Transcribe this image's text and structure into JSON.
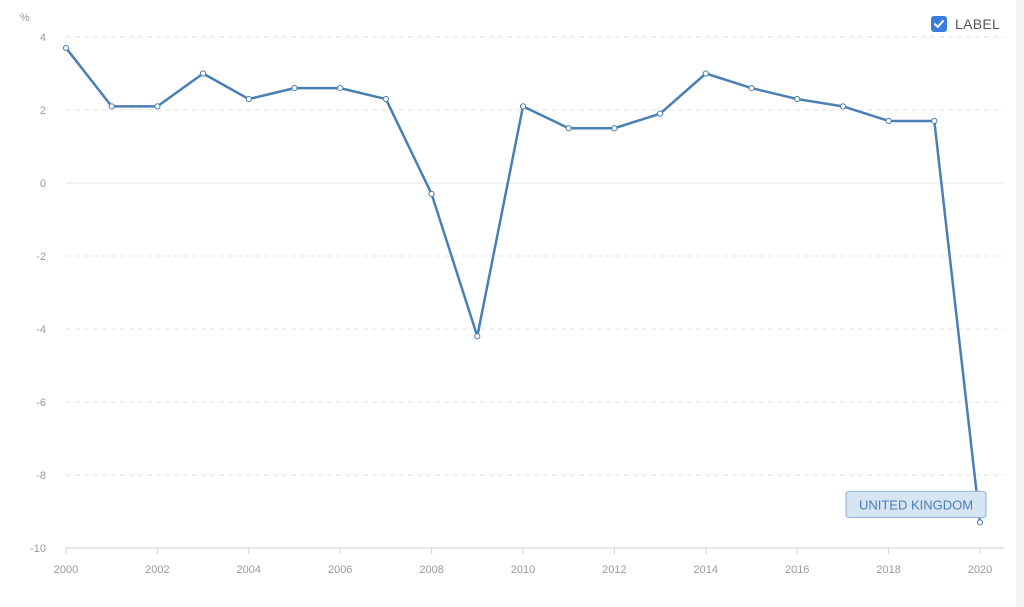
{
  "legend": {
    "label": "LABEL",
    "checked": true,
    "checkbox_icon": "checkmark-icon"
  },
  "colors": {
    "line": "#4a7fb5",
    "grid": "#e3e3e3",
    "tag_bg": "#d7e4f2",
    "tag_border": "#9ab8d8",
    "tag_text": "#4a7fb5",
    "accent": "#3b7ddd"
  },
  "chart_data": {
    "type": "line",
    "ylabel": "%",
    "xlim": [
      2000,
      2020
    ],
    "ylim": [
      -10,
      4
    ],
    "x_ticks": [
      2000,
      2002,
      2004,
      2006,
      2008,
      2010,
      2012,
      2014,
      2016,
      2018,
      2020
    ],
    "y_ticks": [
      4,
      2,
      0,
      -2,
      -4,
      -6,
      -8,
      -10
    ],
    "grid": true,
    "legend_position": "top-right",
    "series": [
      {
        "name": "UNITED KINGDOM",
        "x": [
          2000,
          2001,
          2002,
          2003,
          2004,
          2005,
          2006,
          2007,
          2008,
          2009,
          2010,
          2011,
          2012,
          2013,
          2014,
          2015,
          2016,
          2017,
          2018,
          2019,
          2020
        ],
        "values": [
          3.7,
          2.1,
          2.1,
          3.0,
          2.3,
          2.6,
          2.6,
          2.3,
          -0.3,
          -4.2,
          2.1,
          1.5,
          1.5,
          1.9,
          3.0,
          2.6,
          2.3,
          2.1,
          1.7,
          1.7,
          -9.3
        ]
      }
    ]
  }
}
